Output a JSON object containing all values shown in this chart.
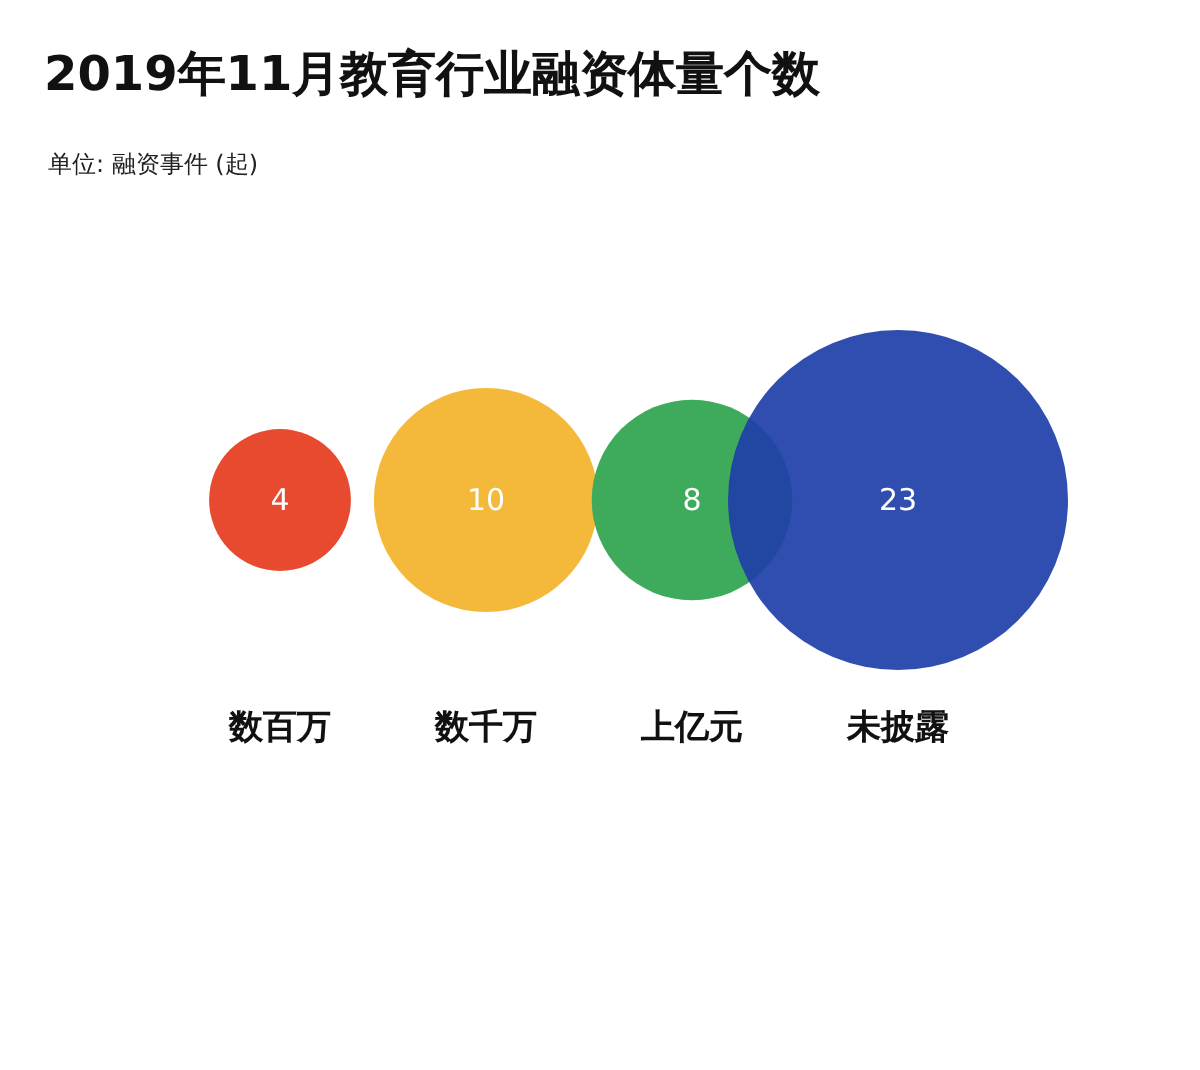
{
  "chart_data": {
    "type": "other",
    "title": "2019年11月教育行业融资体量个数",
    "subtitle": "单位: 融资事件 (起)",
    "categories": [
      "数百万",
      "数千万",
      "上亿元",
      "未披露"
    ],
    "values": [
      4,
      10,
      8,
      23
    ],
    "colors": [
      "#e84a2f",
      "#f4b93a",
      "#3daa5c",
      "#1e3fa8"
    ],
    "data_labels": true
  }
}
